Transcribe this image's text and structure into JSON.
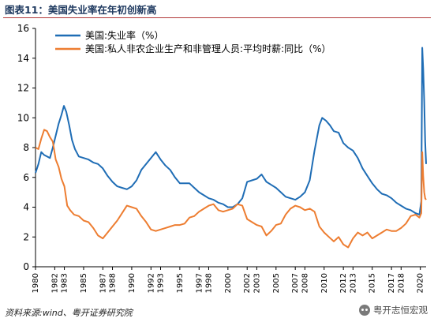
{
  "figure": {
    "title": "图表11：美国失业率在年初创新高",
    "source": "资料来源:wind、粤开证券研究院",
    "watermark": "粤开志恒宏观"
  },
  "colors": {
    "unemployment": "#1f6db5",
    "wages": "#ed7d31"
  },
  "chart_data": {
    "type": "line",
    "legend_placement": "top-left",
    "grid": false,
    "ylim": [
      0,
      16
    ],
    "yticks": [
      0,
      2,
      4,
      6,
      8,
      10,
      12,
      14,
      16
    ],
    "xlim": [
      1980,
      2020.6
    ],
    "xticks": [
      1980,
      1982,
      1983,
      1985,
      1987,
      1988,
      1990,
      1992,
      1993,
      1995,
      1997,
      1998,
      2000,
      2002,
      2003,
      2005,
      2007,
      2008,
      2010,
      2012,
      2013,
      2015,
      2017,
      2018,
      2020
    ],
    "series": [
      {
        "name": "美国:失业率（%）",
        "color": "#1f6db5",
        "points": [
          [
            1980.0,
            6.3
          ],
          [
            1980.3,
            6.9
          ],
          [
            1980.6,
            7.7
          ],
          [
            1980.9,
            7.5
          ],
          [
            1981.2,
            7.4
          ],
          [
            1981.5,
            7.3
          ],
          [
            1981.8,
            8.0
          ],
          [
            1982.1,
            8.8
          ],
          [
            1982.4,
            9.6
          ],
          [
            1982.7,
            10.2
          ],
          [
            1982.95,
            10.8
          ],
          [
            1983.2,
            10.4
          ],
          [
            1983.5,
            9.5
          ],
          [
            1983.8,
            8.5
          ],
          [
            1984.1,
            7.9
          ],
          [
            1984.5,
            7.4
          ],
          [
            1985.0,
            7.3
          ],
          [
            1985.5,
            7.2
          ],
          [
            1986.0,
            7.0
          ],
          [
            1986.5,
            6.9
          ],
          [
            1987.0,
            6.6
          ],
          [
            1987.5,
            6.1
          ],
          [
            1988.0,
            5.7
          ],
          [
            1988.5,
            5.4
          ],
          [
            1989.0,
            5.3
          ],
          [
            1989.5,
            5.2
          ],
          [
            1990.0,
            5.4
          ],
          [
            1990.5,
            5.8
          ],
          [
            1991.0,
            6.5
          ],
          [
            1991.5,
            6.9
          ],
          [
            1992.0,
            7.3
          ],
          [
            1992.5,
            7.7
          ],
          [
            1993.0,
            7.2
          ],
          [
            1993.5,
            6.8
          ],
          [
            1994.0,
            6.5
          ],
          [
            1994.5,
            6.0
          ],
          [
            1995.0,
            5.6
          ],
          [
            1995.5,
            5.6
          ],
          [
            1996.0,
            5.6
          ],
          [
            1996.5,
            5.3
          ],
          [
            1997.0,
            5.0
          ],
          [
            1997.5,
            4.8
          ],
          [
            1998.0,
            4.6
          ],
          [
            1998.5,
            4.5
          ],
          [
            1999.0,
            4.3
          ],
          [
            1999.5,
            4.2
          ],
          [
            2000.0,
            4.0
          ],
          [
            2000.5,
            4.0
          ],
          [
            2001.0,
            4.2
          ],
          [
            2001.5,
            4.6
          ],
          [
            2002.0,
            5.7
          ],
          [
            2002.5,
            5.8
          ],
          [
            2003.0,
            5.9
          ],
          [
            2003.5,
            6.2
          ],
          [
            2004.0,
            5.7
          ],
          [
            2004.5,
            5.5
          ],
          [
            2005.0,
            5.3
          ],
          [
            2005.5,
            5.0
          ],
          [
            2006.0,
            4.7
          ],
          [
            2006.5,
            4.6
          ],
          [
            2007.0,
            4.5
          ],
          [
            2007.5,
            4.7
          ],
          [
            2008.0,
            5.0
          ],
          [
            2008.5,
            5.8
          ],
          [
            2009.0,
            7.8
          ],
          [
            2009.5,
            9.5
          ],
          [
            2009.8,
            10.0
          ],
          [
            2010.2,
            9.8
          ],
          [
            2010.6,
            9.5
          ],
          [
            2011.0,
            9.1
          ],
          [
            2011.5,
            9.0
          ],
          [
            2012.0,
            8.3
          ],
          [
            2012.5,
            8.0
          ],
          [
            2013.0,
            7.8
          ],
          [
            2013.5,
            7.3
          ],
          [
            2014.0,
            6.6
          ],
          [
            2014.5,
            6.1
          ],
          [
            2015.0,
            5.6
          ],
          [
            2015.5,
            5.2
          ],
          [
            2016.0,
            4.9
          ],
          [
            2016.5,
            4.8
          ],
          [
            2017.0,
            4.6
          ],
          [
            2017.5,
            4.3
          ],
          [
            2018.0,
            4.1
          ],
          [
            2018.5,
            3.9
          ],
          [
            2019.0,
            3.8
          ],
          [
            2019.5,
            3.6
          ],
          [
            2019.9,
            3.5
          ],
          [
            2020.1,
            4.4
          ],
          [
            2020.2,
            14.7
          ],
          [
            2020.3,
            13.3
          ],
          [
            2020.4,
            11.1
          ],
          [
            2020.5,
            8.4
          ],
          [
            2020.6,
            6.9
          ]
        ]
      },
      {
        "name": "美国:私人非农企业生产和非管理人员:平均时薪:同比（%）",
        "color": "#ed7d31",
        "points": [
          [
            1980.0,
            8.0
          ],
          [
            1980.3,
            7.9
          ],
          [
            1980.6,
            8.6
          ],
          [
            1980.9,
            9.2
          ],
          [
            1981.2,
            9.1
          ],
          [
            1981.5,
            8.7
          ],
          [
            1981.8,
            8.4
          ],
          [
            1982.1,
            7.2
          ],
          [
            1982.4,
            6.7
          ],
          [
            1982.7,
            5.9
          ],
          [
            1983.0,
            5.4
          ],
          [
            1983.3,
            4.1
          ],
          [
            1983.6,
            3.8
          ],
          [
            1984.0,
            3.5
          ],
          [
            1984.5,
            3.4
          ],
          [
            1985.0,
            3.1
          ],
          [
            1985.5,
            3.0
          ],
          [
            1986.0,
            2.6
          ],
          [
            1986.5,
            2.1
          ],
          [
            1987.0,
            1.9
          ],
          [
            1987.5,
            2.3
          ],
          [
            1988.0,
            2.7
          ],
          [
            1988.5,
            3.1
          ],
          [
            1989.0,
            3.6
          ],
          [
            1989.5,
            4.1
          ],
          [
            1990.0,
            4.0
          ],
          [
            1990.5,
            3.9
          ],
          [
            1991.0,
            3.4
          ],
          [
            1991.5,
            3.0
          ],
          [
            1992.0,
            2.5
          ],
          [
            1992.5,
            2.4
          ],
          [
            1993.0,
            2.5
          ],
          [
            1993.5,
            2.6
          ],
          [
            1994.0,
            2.7
          ],
          [
            1994.5,
            2.8
          ],
          [
            1995.0,
            2.8
          ],
          [
            1995.5,
            2.9
          ],
          [
            1996.0,
            3.3
          ],
          [
            1996.5,
            3.4
          ],
          [
            1997.0,
            3.7
          ],
          [
            1997.5,
            3.9
          ],
          [
            1998.0,
            4.1
          ],
          [
            1998.5,
            4.2
          ],
          [
            1999.0,
            3.8
          ],
          [
            1999.5,
            3.7
          ],
          [
            2000.0,
            3.8
          ],
          [
            2000.5,
            3.9
          ],
          [
            2001.0,
            4.2
          ],
          [
            2001.5,
            4.1
          ],
          [
            2002.0,
            3.2
          ],
          [
            2002.5,
            3.0
          ],
          [
            2003.0,
            2.8
          ],
          [
            2003.5,
            2.7
          ],
          [
            2004.0,
            2.1
          ],
          [
            2004.5,
            2.4
          ],
          [
            2005.0,
            2.8
          ],
          [
            2005.5,
            2.9
          ],
          [
            2006.0,
            3.5
          ],
          [
            2006.5,
            3.9
          ],
          [
            2007.0,
            4.1
          ],
          [
            2007.5,
            4.0
          ],
          [
            2008.0,
            3.8
          ],
          [
            2008.5,
            3.9
          ],
          [
            2009.0,
            3.7
          ],
          [
            2009.5,
            2.7
          ],
          [
            2010.0,
            2.3
          ],
          [
            2010.5,
            2.0
          ],
          [
            2011.0,
            1.7
          ],
          [
            2011.5,
            2.0
          ],
          [
            2012.0,
            1.5
          ],
          [
            2012.5,
            1.3
          ],
          [
            2013.0,
            1.9
          ],
          [
            2013.5,
            2.3
          ],
          [
            2014.0,
            2.1
          ],
          [
            2014.5,
            2.3
          ],
          [
            2015.0,
            1.9
          ],
          [
            2015.5,
            2.1
          ],
          [
            2016.0,
            2.3
          ],
          [
            2016.5,
            2.5
          ],
          [
            2017.0,
            2.4
          ],
          [
            2017.5,
            2.4
          ],
          [
            2018.0,
            2.6
          ],
          [
            2018.5,
            2.9
          ],
          [
            2019.0,
            3.4
          ],
          [
            2019.5,
            3.5
          ],
          [
            2019.9,
            3.3
          ],
          [
            2020.1,
            3.6
          ],
          [
            2020.2,
            7.7
          ],
          [
            2020.3,
            6.1
          ],
          [
            2020.4,
            5.0
          ],
          [
            2020.5,
            4.6
          ],
          [
            2020.6,
            4.5
          ]
        ]
      }
    ]
  }
}
